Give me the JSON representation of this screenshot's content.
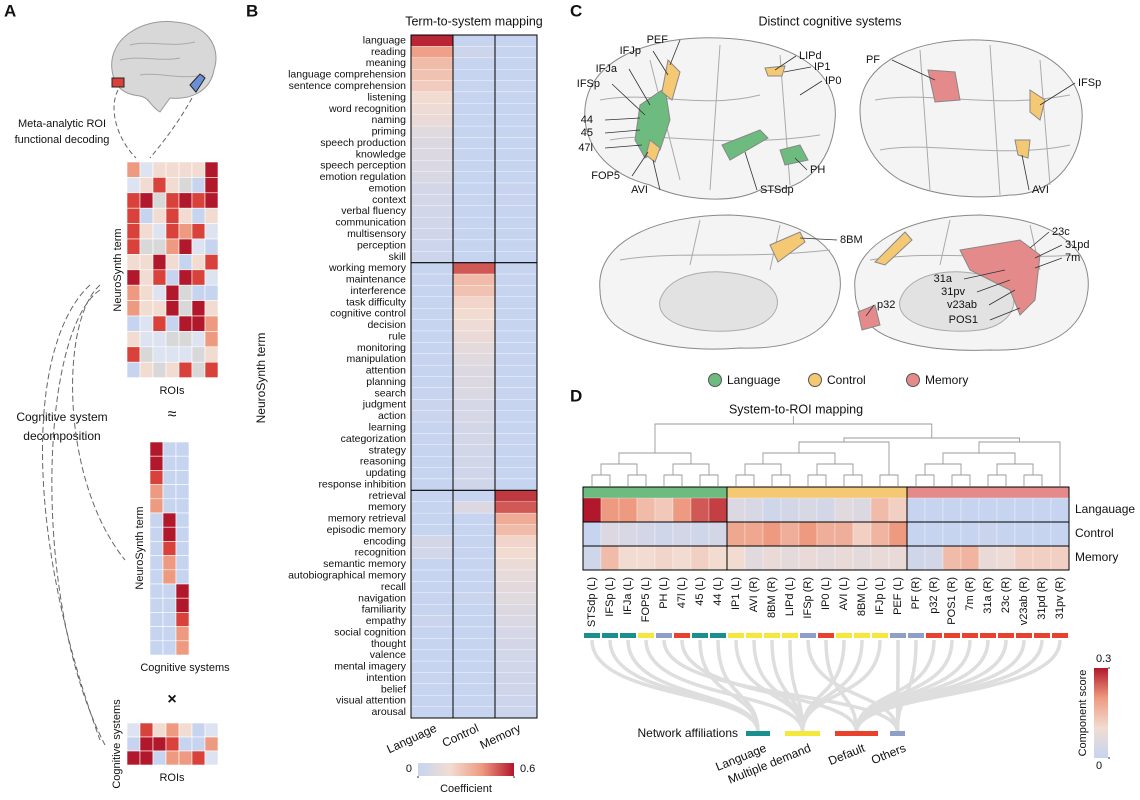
{
  "panel_labels": [
    "A",
    "B",
    "C",
    "D"
  ],
  "panel_a": {
    "decoding_label": [
      "Meta-analytic ROI",
      "functional decoding"
    ],
    "matrix_y_label": "NeuroSynth term",
    "matrix_x_label": "ROIs",
    "approx": "≈",
    "decomposition_label": [
      "Cognitive system",
      "decomposition"
    ],
    "systems_y_label": "NeuroSynth term",
    "systems_x_label": "Cognitive systems",
    "times": "×",
    "loadings_y_label": "Cognitive systems",
    "loadings_x_label": "ROIs"
  },
  "panel_c": {
    "title": "Distinct cognitive systems",
    "region_labels": [
      "PEF",
      "IFJp",
      "IFJa",
      "IFSp",
      "44",
      "45",
      "47l",
      "FOP5",
      "AVI",
      "STSdp",
      "PH",
      "LIPd",
      "IP1",
      "IP0",
      "PF",
      "IFSp",
      "AVI",
      "8BM",
      "23c",
      "31pd",
      "7m",
      "31a",
      "31pv",
      "v23ab",
      "POS1",
      "p32"
    ],
    "legend": [
      {
        "name": "Language",
        "color": "#6dbb7e"
      },
      {
        "name": "Control",
        "color": "#f5c873"
      },
      {
        "name": "Memory",
        "color": "#e58a8a"
      }
    ]
  },
  "chart_data": [
    {
      "type": "heatmap",
      "title": "Term-to-system mapping",
      "ylabel": "NeuroSynth term",
      "columns": [
        "Language",
        "Control",
        "Memory"
      ],
      "terms": [
        "language",
        "reading",
        "meaning",
        "language comprehension",
        "sentence comprehension",
        "listening",
        "word recognition",
        "naming",
        "priming",
        "speech production",
        "knowledge",
        "speech perception",
        "emotion regulation",
        "emotion",
        "context",
        "verbal fluency",
        "communication",
        "multisensory",
        "perception",
        "skill",
        "working memory",
        "maintenance",
        "interference",
        "task difficulty",
        "cognitive control",
        "decision",
        "rule",
        "monitoring",
        "manipulation",
        "attention",
        "planning",
        "search",
        "judgment",
        "action",
        "learning",
        "categorization",
        "strategy",
        "reasoning",
        "updating",
        "response inhibition",
        "retrieval",
        "memory",
        "memory retrieval",
        "episodic memory",
        "encoding",
        "recognition",
        "semantic memory",
        "autobiographical memory",
        "recall",
        "navigation",
        "familiarity",
        "empathy",
        "social cognition",
        "thought",
        "valence",
        "mental imagery",
        "intention",
        "belief",
        "visual attention",
        "arousal"
      ],
      "values": [
        [
          0.58,
          0,
          0
        ],
        [
          0.38,
          0.03,
          0
        ],
        [
          0.3,
          0,
          0
        ],
        [
          0.28,
          0,
          0
        ],
        [
          0.25,
          0,
          0
        ],
        [
          0.2,
          0,
          0
        ],
        [
          0.18,
          0,
          0
        ],
        [
          0.16,
          0,
          0
        ],
        [
          0.12,
          0,
          0
        ],
        [
          0.1,
          0,
          0
        ],
        [
          0.1,
          0,
          0
        ],
        [
          0.09,
          0,
          0
        ],
        [
          0.08,
          0,
          0
        ],
        [
          0.06,
          0,
          0.01
        ],
        [
          0.06,
          0,
          0.01
        ],
        [
          0.05,
          0,
          0
        ],
        [
          0.05,
          0,
          0
        ],
        [
          0.04,
          0,
          0
        ],
        [
          0.03,
          0,
          0
        ],
        [
          0.03,
          0,
          0
        ],
        [
          0,
          0.5,
          0
        ],
        [
          0,
          0.3,
          0
        ],
        [
          0,
          0.28,
          0
        ],
        [
          0,
          0.22,
          0
        ],
        [
          0,
          0.2,
          0
        ],
        [
          0,
          0.18,
          0
        ],
        [
          0,
          0.16,
          0
        ],
        [
          0,
          0.14,
          0
        ],
        [
          0,
          0.12,
          0
        ],
        [
          0,
          0.1,
          0
        ],
        [
          0,
          0.1,
          0
        ],
        [
          0,
          0.09,
          0
        ],
        [
          0.02,
          0.07,
          0
        ],
        [
          0.02,
          0.07,
          0
        ],
        [
          0,
          0.06,
          0
        ],
        [
          0,
          0.06,
          0
        ],
        [
          0,
          0.05,
          0
        ],
        [
          0,
          0.05,
          0
        ],
        [
          0,
          0.04,
          0
        ],
        [
          0,
          0.04,
          0
        ],
        [
          0,
          0,
          0.55
        ],
        [
          0,
          0.1,
          0.5
        ],
        [
          0,
          0,
          0.35
        ],
        [
          0,
          0,
          0.3
        ],
        [
          0.06,
          0,
          0.22
        ],
        [
          0.05,
          0,
          0.2
        ],
        [
          0,
          0,
          0.17
        ],
        [
          0,
          0,
          0.15
        ],
        [
          0,
          0,
          0.13
        ],
        [
          0,
          0.02,
          0.12
        ],
        [
          0,
          0,
          0.1
        ],
        [
          0.02,
          0,
          0.09
        ],
        [
          0,
          0,
          0.07
        ],
        [
          0,
          0,
          0.06
        ],
        [
          0,
          0,
          0.05
        ],
        [
          0,
          0,
          0.05
        ],
        [
          0,
          0,
          0.04
        ],
        [
          0,
          0,
          0.04
        ],
        [
          0,
          0,
          0.03
        ],
        [
          0,
          0,
          0.03
        ]
      ],
      "colormap": [
        "#c6d4f0",
        "#f2dcd2",
        "#ee9a80",
        "#b2182b"
      ],
      "colorbar": {
        "label": "Coefficient",
        "lim": [
          0,
          0.6
        ],
        "ticks": [
          0,
          0.6
        ]
      }
    },
    {
      "type": "heatmap",
      "title": "System-to-ROI mapping",
      "rows": [
        "Langauage",
        "Control",
        "Memory"
      ],
      "row_colors": [
        "#6dbb7e",
        "#f5c873",
        "#e58a8a"
      ],
      "columns": [
        "STSdp (L)",
        "IFSp (L)",
        "IFJa (L)",
        "FOP5 (L)",
        "PH (L)",
        "47l (L)",
        "45 (L)",
        "44 (L)",
        "IP1 (L)",
        "AVI (R)",
        "8BM (R)",
        "LIPd (L)",
        "IFSp (R)",
        "IP0 (L)",
        "AVI (L)",
        "8BM (L)",
        "IFJp (L)",
        "PEF (L)",
        "PF (R)",
        "p32 (R)",
        "POS1 (R)",
        "7m (R)",
        "31a (R)",
        "23c (R)",
        "v23ab (R)",
        "31pd (R)",
        "31pv (R)"
      ],
      "column_system": [
        0,
        0,
        0,
        0,
        0,
        0,
        0,
        0,
        1,
        1,
        1,
        1,
        1,
        1,
        1,
        1,
        1,
        1,
        2,
        2,
        2,
        2,
        2,
        2,
        2,
        2,
        2
      ],
      "values": [
        [
          0.3,
          0.2,
          0.2,
          0.15,
          0.13,
          0.2,
          0.25,
          0.27,
          0.05,
          0.04,
          0.02,
          0.03,
          0.04,
          0.03,
          0.06,
          0.05,
          0.15,
          0.12,
          0,
          0,
          0,
          0,
          0,
          0,
          0,
          0,
          0
        ],
        [
          0,
          0.05,
          0.04,
          0.03,
          0.02,
          0.03,
          0.02,
          0.03,
          0.18,
          0.18,
          0.2,
          0.17,
          0.2,
          0.17,
          0.17,
          0.12,
          0.16,
          0.2,
          0,
          0,
          0,
          0,
          0.01,
          0,
          0,
          0,
          0
        ],
        [
          0.02,
          0.15,
          0.1,
          0.1,
          0.11,
          0.1,
          0.12,
          0.1,
          0.1,
          0.06,
          0.08,
          0.07,
          0.08,
          0.07,
          0.08,
          0.07,
          0.08,
          0.08,
          0.02,
          0.03,
          0.15,
          0.16,
          0.08,
          0.09,
          0.12,
          0.12,
          0.12
        ]
      ],
      "colormap": [
        "#c6d4f0",
        "#f2dcd2",
        "#ee9a80",
        "#b2182b"
      ],
      "colorbar": {
        "label": "Component score",
        "lim": [
          0,
          0.3
        ],
        "ticks": [
          0,
          0.3
        ]
      },
      "network": {
        "title": "Network affiliations",
        "names": [
          "Language",
          "Multiple demand",
          "Default",
          "Others"
        ],
        "colors": [
          "#1a8f8f",
          "#f5e83a",
          "#e8412c",
          "#8fa0c8"
        ],
        "affiliation": [
          0,
          0,
          0,
          1,
          3,
          2,
          0,
          0,
          1,
          1,
          1,
          1,
          3,
          2,
          1,
          1,
          1,
          3,
          3,
          2,
          2,
          2,
          2,
          2,
          2,
          2,
          2
        ]
      }
    }
  ]
}
